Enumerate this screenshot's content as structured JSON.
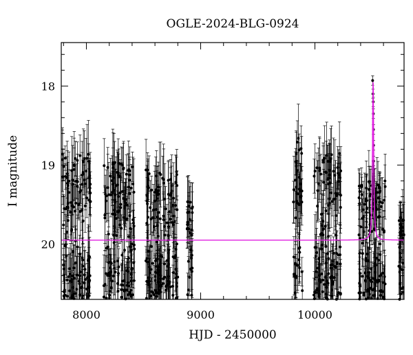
{
  "chart_data": {
    "type": "scatter",
    "title": "OGLE-2024-BLG-0924",
    "xlabel": "HJD - 2450000",
    "ylabel": "I magnitude",
    "xlim": [
      7780,
      10780
    ],
    "ylim": [
      20.7,
      17.45
    ],
    "y_inverted": true,
    "x_ticks": [
      8000,
      9000,
      10000
    ],
    "y_ticks": [
      18,
      19,
      20
    ],
    "grid": false,
    "series": [
      {
        "kind": "observation-seasons",
        "color": "#000000",
        "seasons": [
          {
            "start": 7790,
            "end": 8040,
            "baseline": 19.95,
            "brightest": 18.85,
            "faintest": 20.7
          },
          {
            "start": 8150,
            "end": 8420,
            "baseline": 19.95,
            "brightest": 18.95,
            "faintest": 20.7
          },
          {
            "start": 8520,
            "end": 8800,
            "baseline": 19.95,
            "brightest": 19.05,
            "faintest": 20.7
          },
          {
            "start": 8880,
            "end": 8930,
            "baseline": 19.95,
            "brightest": 19.45,
            "faintest": 20.7
          },
          {
            "start": 9810,
            "end": 9890,
            "baseline": 19.95,
            "brightest": 18.65,
            "faintest": 20.7
          },
          {
            "start": 9990,
            "end": 10230,
            "baseline": 19.95,
            "brightest": 18.85,
            "faintest": 20.7
          },
          {
            "start": 10380,
            "end": 10620,
            "baseline": 19.95,
            "brightest": 19.2,
            "faintest": 20.7
          },
          {
            "start": 10730,
            "end": 10780,
            "baseline": 19.95,
            "brightest": 19.65,
            "faintest": 20.7
          }
        ],
        "peak_points": [
          {
            "x": 10505,
            "y": 17.93
          },
          {
            "x": 10508,
            "y": 18.1
          },
          {
            "x": 10510,
            "y": 18.2
          },
          {
            "x": 10511,
            "y": 18.35
          },
          {
            "x": 10512,
            "y": 18.55
          },
          {
            "x": 10513,
            "y": 18.75
          },
          {
            "x": 10514,
            "y": 18.95
          },
          {
            "x": 10516,
            "y": 19.2
          },
          {
            "x": 10520,
            "y": 19.5
          },
          {
            "x": 10526,
            "y": 19.75
          }
        ]
      },
      {
        "kind": "model",
        "color": "#e020e0",
        "baseline": 19.95,
        "peak": 17.95,
        "t0": 10509,
        "width": 9
      }
    ]
  }
}
